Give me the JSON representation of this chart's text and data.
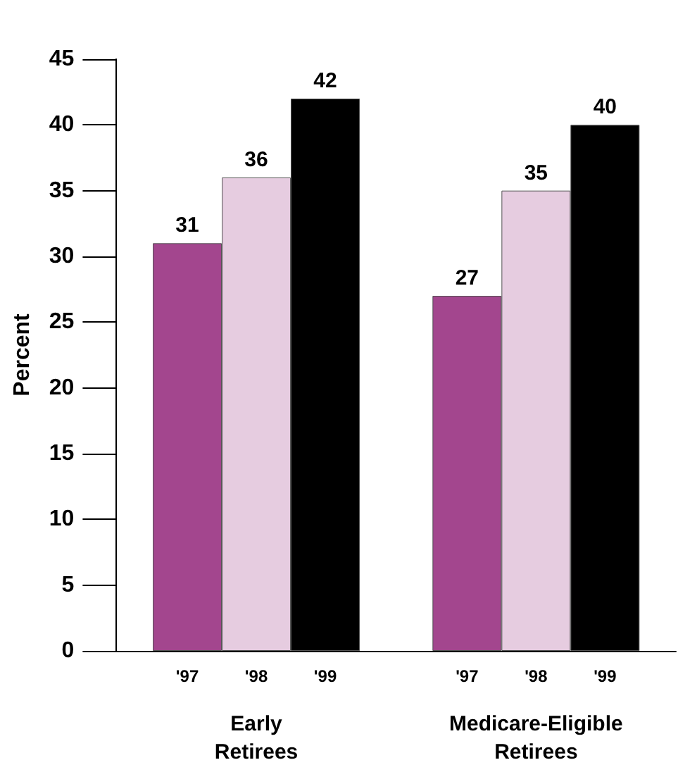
{
  "chart_data": {
    "type": "bar",
    "ylabel": "Percent",
    "categories": [
      "Early Retirees",
      "Medicare-Eligible Retirees"
    ],
    "series": [
      {
        "name": "'97",
        "color": "#a3468e",
        "values": [
          31,
          27
        ]
      },
      {
        "name": "'98",
        "color": "#e6cce0",
        "values": [
          36,
          35
        ]
      },
      {
        "name": "'99",
        "color": "#000000",
        "values": [
          42,
          40
        ]
      }
    ],
    "ylim": [
      0,
      45
    ],
    "yticks": [
      0,
      5,
      10,
      15,
      20,
      25,
      30,
      35,
      40,
      45
    ],
    "grid": false,
    "legend": false,
    "data_labels": true
  }
}
